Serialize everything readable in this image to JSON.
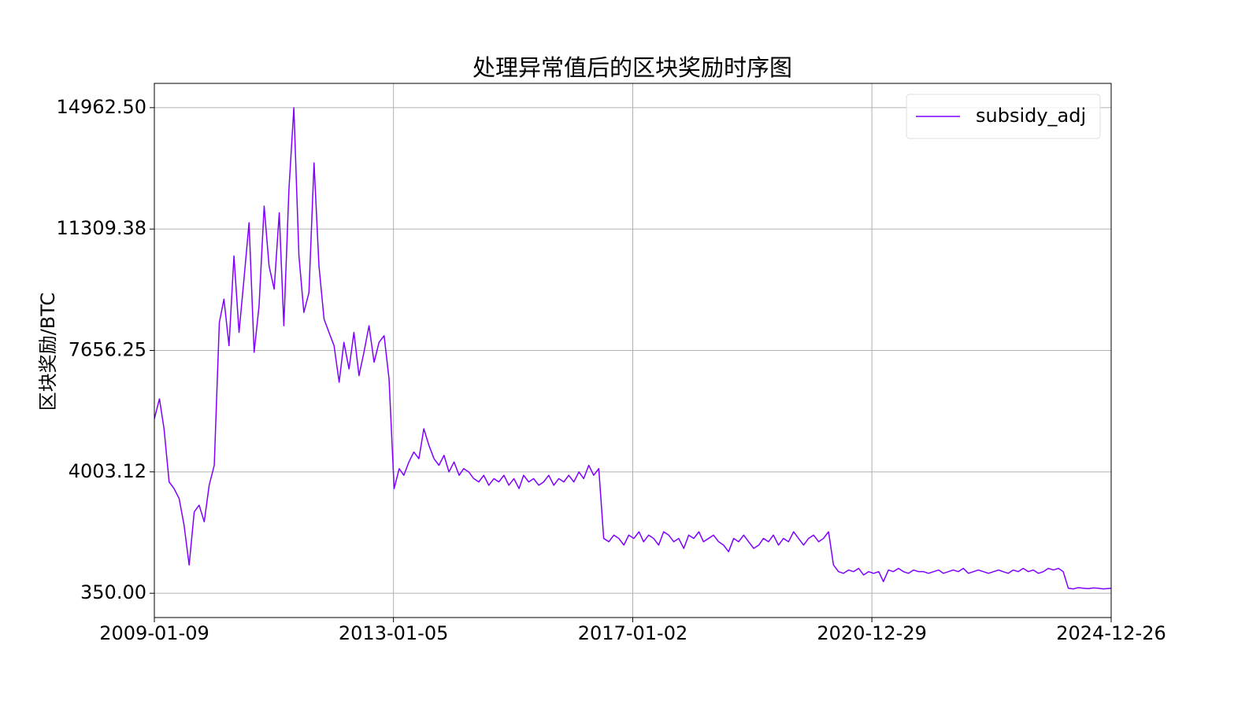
{
  "chart_data": {
    "type": "line",
    "title": "处理异常值后的区块奖励时序图",
    "y_label": "区块奖励/BTC",
    "x": [
      "2009-01-09",
      "2009-02-09",
      "2009-03-09",
      "2009-04-09",
      "2009-05-09",
      "2009-06-09",
      "2009-07-09",
      "2009-08-09",
      "2009-09-09",
      "2009-10-09",
      "2009-11-09",
      "2009-12-09",
      "2010-01-09",
      "2010-02-09",
      "2010-03-09",
      "2010-04-09",
      "2010-05-09",
      "2010-06-09",
      "2010-07-09",
      "2010-08-09",
      "2010-09-09",
      "2010-10-09",
      "2010-11-09",
      "2010-12-09",
      "2011-01-09",
      "2011-02-09",
      "2011-03-09",
      "2011-04-09",
      "2011-05-09",
      "2011-06-09",
      "2011-07-09",
      "2011-08-09",
      "2011-09-09",
      "2011-10-09",
      "2011-11-09",
      "2011-12-09",
      "2012-01-09",
      "2012-02-09",
      "2012-03-09",
      "2012-04-09",
      "2012-05-09",
      "2012-06-09",
      "2012-07-09",
      "2012-08-09",
      "2012-09-09",
      "2012-10-09",
      "2012-11-09",
      "2012-12-09",
      "2013-01-09",
      "2013-02-09",
      "2013-03-09",
      "2013-04-09",
      "2013-05-09",
      "2013-06-09",
      "2013-07-09",
      "2013-08-09",
      "2013-09-09",
      "2013-10-09",
      "2013-11-09",
      "2013-12-09",
      "2014-01-09",
      "2014-02-09",
      "2014-03-09",
      "2014-04-09",
      "2014-05-09",
      "2014-06-09",
      "2014-07-09",
      "2014-08-09",
      "2014-09-09",
      "2014-10-09",
      "2014-11-09",
      "2014-12-09",
      "2015-01-09",
      "2015-02-09",
      "2015-03-09",
      "2015-04-09",
      "2015-05-09",
      "2015-06-09",
      "2015-07-09",
      "2015-08-09",
      "2015-09-09",
      "2015-10-09",
      "2015-11-09",
      "2015-12-09",
      "2016-01-09",
      "2016-02-09",
      "2016-03-09",
      "2016-04-09",
      "2016-05-09",
      "2016-06-09",
      "2016-07-09",
      "2016-08-09",
      "2016-09-09",
      "2016-10-09",
      "2016-11-09",
      "2016-12-09",
      "2017-01-09",
      "2017-02-09",
      "2017-03-09",
      "2017-04-09",
      "2017-05-09",
      "2017-06-09",
      "2017-07-09",
      "2017-08-09",
      "2017-09-09",
      "2017-10-09",
      "2017-11-09",
      "2017-12-09",
      "2018-01-09",
      "2018-02-09",
      "2018-03-09",
      "2018-04-09",
      "2018-05-09",
      "2018-06-09",
      "2018-07-09",
      "2018-08-09",
      "2018-09-09",
      "2018-10-09",
      "2018-11-09",
      "2018-12-09",
      "2019-01-09",
      "2019-02-09",
      "2019-03-09",
      "2019-04-09",
      "2019-05-09",
      "2019-06-09",
      "2019-07-09",
      "2019-08-09",
      "2019-09-09",
      "2019-10-09",
      "2019-11-09",
      "2019-12-09",
      "2020-01-09",
      "2020-02-09",
      "2020-03-09",
      "2020-04-09",
      "2020-05-09",
      "2020-06-09",
      "2020-07-09",
      "2020-08-09",
      "2020-09-09",
      "2020-10-09",
      "2020-11-09",
      "2020-12-09",
      "2021-01-09",
      "2021-02-09",
      "2021-03-09",
      "2021-04-09",
      "2021-05-09",
      "2021-06-09",
      "2021-07-09",
      "2021-08-09",
      "2021-09-09",
      "2021-10-09",
      "2021-11-09",
      "2021-12-09",
      "2022-01-09",
      "2022-02-09",
      "2022-03-09",
      "2022-04-09",
      "2022-05-09",
      "2022-06-09",
      "2022-07-09",
      "2022-08-09",
      "2022-09-09",
      "2022-10-09",
      "2022-11-09",
      "2022-12-09",
      "2023-01-09",
      "2023-02-09",
      "2023-03-09",
      "2023-04-09",
      "2023-05-09",
      "2023-06-09",
      "2023-07-09",
      "2023-08-09",
      "2023-09-09",
      "2023-10-09",
      "2023-11-09",
      "2023-12-09",
      "2024-01-09",
      "2024-02-09",
      "2024-03-09",
      "2024-04-09",
      "2024-05-09",
      "2024-06-09",
      "2024-07-09",
      "2024-08-09",
      "2024-09-09",
      "2024-10-09",
      "2024-11-09",
      "2024-12-26"
    ],
    "series": [
      {
        "name": "subsidy_adj",
        "color": "#7f00ff",
        "values": [
          5600,
          6200,
          5300,
          3700,
          3500,
          3200,
          2400,
          1200,
          2800,
          3000,
          2500,
          3600,
          4200,
          8500,
          9200,
          7800,
          10500,
          8200,
          9800,
          11500,
          7600,
          9000,
          12000,
          10200,
          9500,
          11800,
          8400,
          12500,
          14962.5,
          10500,
          8800,
          9400,
          13300,
          10200,
          8600,
          8200,
          7800,
          6700,
          7900,
          7100,
          8200,
          6900,
          7600,
          8400,
          7300,
          7900,
          8100,
          6800,
          3500,
          4100,
          3900,
          4300,
          4600,
          4400,
          5300,
          4800,
          4400,
          4200,
          4500,
          4000,
          4300,
          3900,
          4100,
          4000,
          3800,
          3700,
          3900,
          3600,
          3800,
          3700,
          3900,
          3600,
          3800,
          3500,
          3900,
          3700,
          3800,
          3600,
          3700,
          3900,
          3600,
          3800,
          3700,
          3900,
          3700,
          4000,
          3800,
          4200,
          3900,
          4100,
          2000,
          1900,
          2100,
          2000,
          1800,
          2100,
          2000,
          2200,
          1900,
          2100,
          2000,
          1800,
          2200,
          2100,
          1900,
          2000,
          1700,
          2100,
          2000,
          2200,
          1900,
          2000,
          2100,
          1900,
          1800,
          1600,
          2000,
          1900,
          2100,
          1900,
          1700,
          1800,
          2000,
          1900,
          2100,
          1800,
          2000,
          1900,
          2200,
          2000,
          1800,
          2000,
          2100,
          1900,
          2000,
          2200,
          1200,
          1000,
          950,
          1050,
          1000,
          1100,
          900,
          1000,
          950,
          1000,
          700,
          1050,
          1000,
          1100,
          1000,
          950,
          1050,
          1000,
          1000,
          950,
          1000,
          1050,
          950,
          1000,
          1050,
          1000,
          1100,
          950,
          1000,
          1050,
          1000,
          950,
          1000,
          1050,
          1000,
          950,
          1050,
          1000,
          1100,
          1000,
          1050,
          950,
          1000,
          1100,
          1050,
          1100,
          1000,
          500,
          480,
          520,
          500,
          490,
          510,
          500,
          480,
          500
        ]
      }
    ],
    "xlim": [
      "2009-01-09",
      "2024-12-26"
    ],
    "xticks": [
      "2009-01-09",
      "2013-01-05",
      "2017-01-02",
      "2020-12-29",
      "2024-12-26"
    ],
    "ylim": [
      -380.6,
      15693.1
    ],
    "yticks": [
      {
        "value": 350,
        "label": "350.00"
      },
      {
        "value": 4003.125,
        "label": "4003.12"
      },
      7656.25,
      {
        "value": 11309.375,
        "label": "11309.38"
      },
      {
        "value": 14962.5,
        "label": "14962.50"
      }
    ],
    "grid": true,
    "legend": "upper right"
  }
}
